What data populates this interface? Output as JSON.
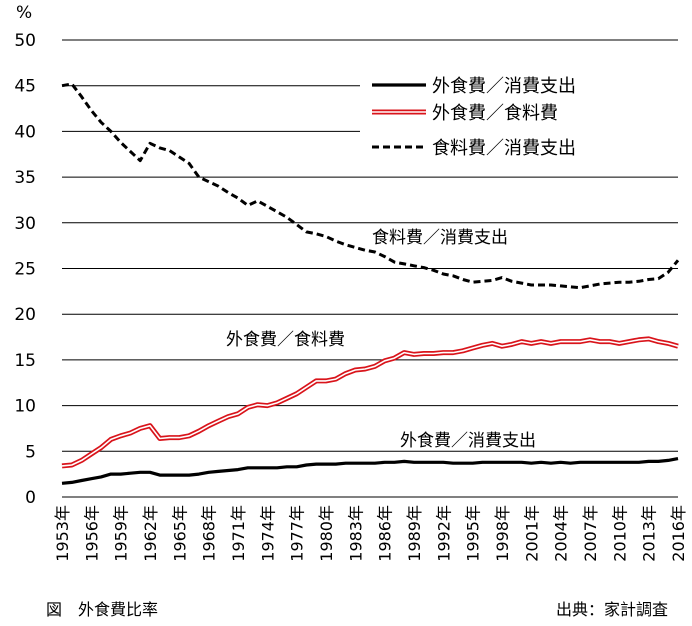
{
  "chart_data": {
    "type": "line",
    "ylabel": "%",
    "ylim": [
      0,
      50
    ],
    "yticks": [
      0,
      5,
      10,
      15,
      20,
      25,
      30,
      35,
      40,
      45,
      50
    ],
    "grid": true,
    "legend_position": "top-right",
    "x": [
      1953,
      1954,
      1955,
      1956,
      1957,
      1958,
      1959,
      1960,
      1961,
      1962,
      1963,
      1964,
      1965,
      1966,
      1967,
      1968,
      1969,
      1970,
      1971,
      1972,
      1973,
      1974,
      1975,
      1976,
      1977,
      1978,
      1979,
      1980,
      1981,
      1982,
      1983,
      1984,
      1985,
      1986,
      1987,
      1988,
      1989,
      1990,
      1991,
      1992,
      1993,
      1994,
      1995,
      1996,
      1997,
      1998,
      1999,
      2000,
      2001,
      2002,
      2003,
      2004,
      2005,
      2006,
      2007,
      2008,
      2009,
      2010,
      2011,
      2012,
      2013,
      2014,
      2015,
      2016
    ],
    "xticks": [
      "1953年",
      "1956年",
      "1959年",
      "1962年",
      "1965年",
      "1968年",
      "1971年",
      "1974年",
      "1977年",
      "1980年",
      "1983年",
      "1986年",
      "1989年",
      "1992年",
      "1995年",
      "1998年",
      "2001年",
      "2004年",
      "2007年",
      "2010年",
      "2013年",
      "2016年"
    ],
    "series": [
      {
        "name": "外食費／消費支出",
        "style": "solid-black",
        "color": "#000000",
        "values": [
          1.5,
          1.6,
          1.8,
          2.0,
          2.2,
          2.5,
          2.5,
          2.6,
          2.7,
          2.7,
          2.4,
          2.4,
          2.4,
          2.4,
          2.5,
          2.7,
          2.8,
          2.9,
          3.0,
          3.2,
          3.2,
          3.2,
          3.2,
          3.3,
          3.3,
          3.5,
          3.6,
          3.6,
          3.6,
          3.7,
          3.7,
          3.7,
          3.7,
          3.8,
          3.8,
          3.9,
          3.8,
          3.8,
          3.8,
          3.8,
          3.7,
          3.7,
          3.7,
          3.8,
          3.8,
          3.8,
          3.8,
          3.8,
          3.7,
          3.8,
          3.7,
          3.8,
          3.7,
          3.8,
          3.8,
          3.8,
          3.8,
          3.8,
          3.8,
          3.8,
          3.9,
          3.9,
          4.0,
          4.2
        ]
      },
      {
        "name": "外食費／食料費",
        "style": "double-red",
        "color": "#d9141b",
        "values": [
          3.4,
          3.5,
          4.0,
          4.7,
          5.4,
          6.3,
          6.7,
          7.0,
          7.5,
          7.8,
          6.4,
          6.5,
          6.5,
          6.7,
          7.2,
          7.8,
          8.3,
          8.8,
          9.1,
          9.8,
          10.1,
          10.0,
          10.3,
          10.8,
          11.3,
          12.0,
          12.7,
          12.7,
          12.9,
          13.5,
          13.9,
          14.0,
          14.3,
          14.9,
          15.2,
          15.8,
          15.6,
          15.7,
          15.7,
          15.8,
          15.8,
          16.0,
          16.3,
          16.6,
          16.8,
          16.5,
          16.7,
          17.0,
          16.8,
          17.0,
          16.8,
          17.0,
          17.0,
          17.0,
          17.2,
          17.0,
          17.0,
          16.8,
          17.0,
          17.2,
          17.3,
          17.0,
          16.8,
          16.5
        ]
      },
      {
        "name": "食料費／消費支出",
        "style": "dashed-black",
        "color": "#000000",
        "values": [
          45.0,
          45.2,
          43.8,
          42.3,
          41.0,
          40.0,
          38.8,
          37.8,
          36.8,
          38.7,
          38.2,
          37.9,
          37.2,
          36.5,
          35.0,
          34.5,
          34.0,
          33.3,
          32.7,
          31.9,
          32.4,
          31.8,
          31.2,
          30.6,
          29.8,
          29.0,
          28.8,
          28.5,
          28.0,
          27.6,
          27.3,
          27.0,
          26.8,
          26.3,
          25.7,
          25.5,
          25.3,
          25.1,
          24.8,
          24.4,
          24.2,
          23.8,
          23.5,
          23.6,
          23.7,
          24.0,
          23.6,
          23.4,
          23.2,
          23.2,
          23.2,
          23.1,
          23.0,
          22.9,
          23.1,
          23.3,
          23.4,
          23.5,
          23.5,
          23.6,
          23.8,
          23.9,
          24.6,
          25.9
        ]
      }
    ],
    "annotations": [
      "食料費／消費支出",
      "外食費／食料費",
      "外食費／消費支出"
    ]
  },
  "captions": {
    "figure": "図　外食費比率",
    "source": "出典：家計調査"
  }
}
